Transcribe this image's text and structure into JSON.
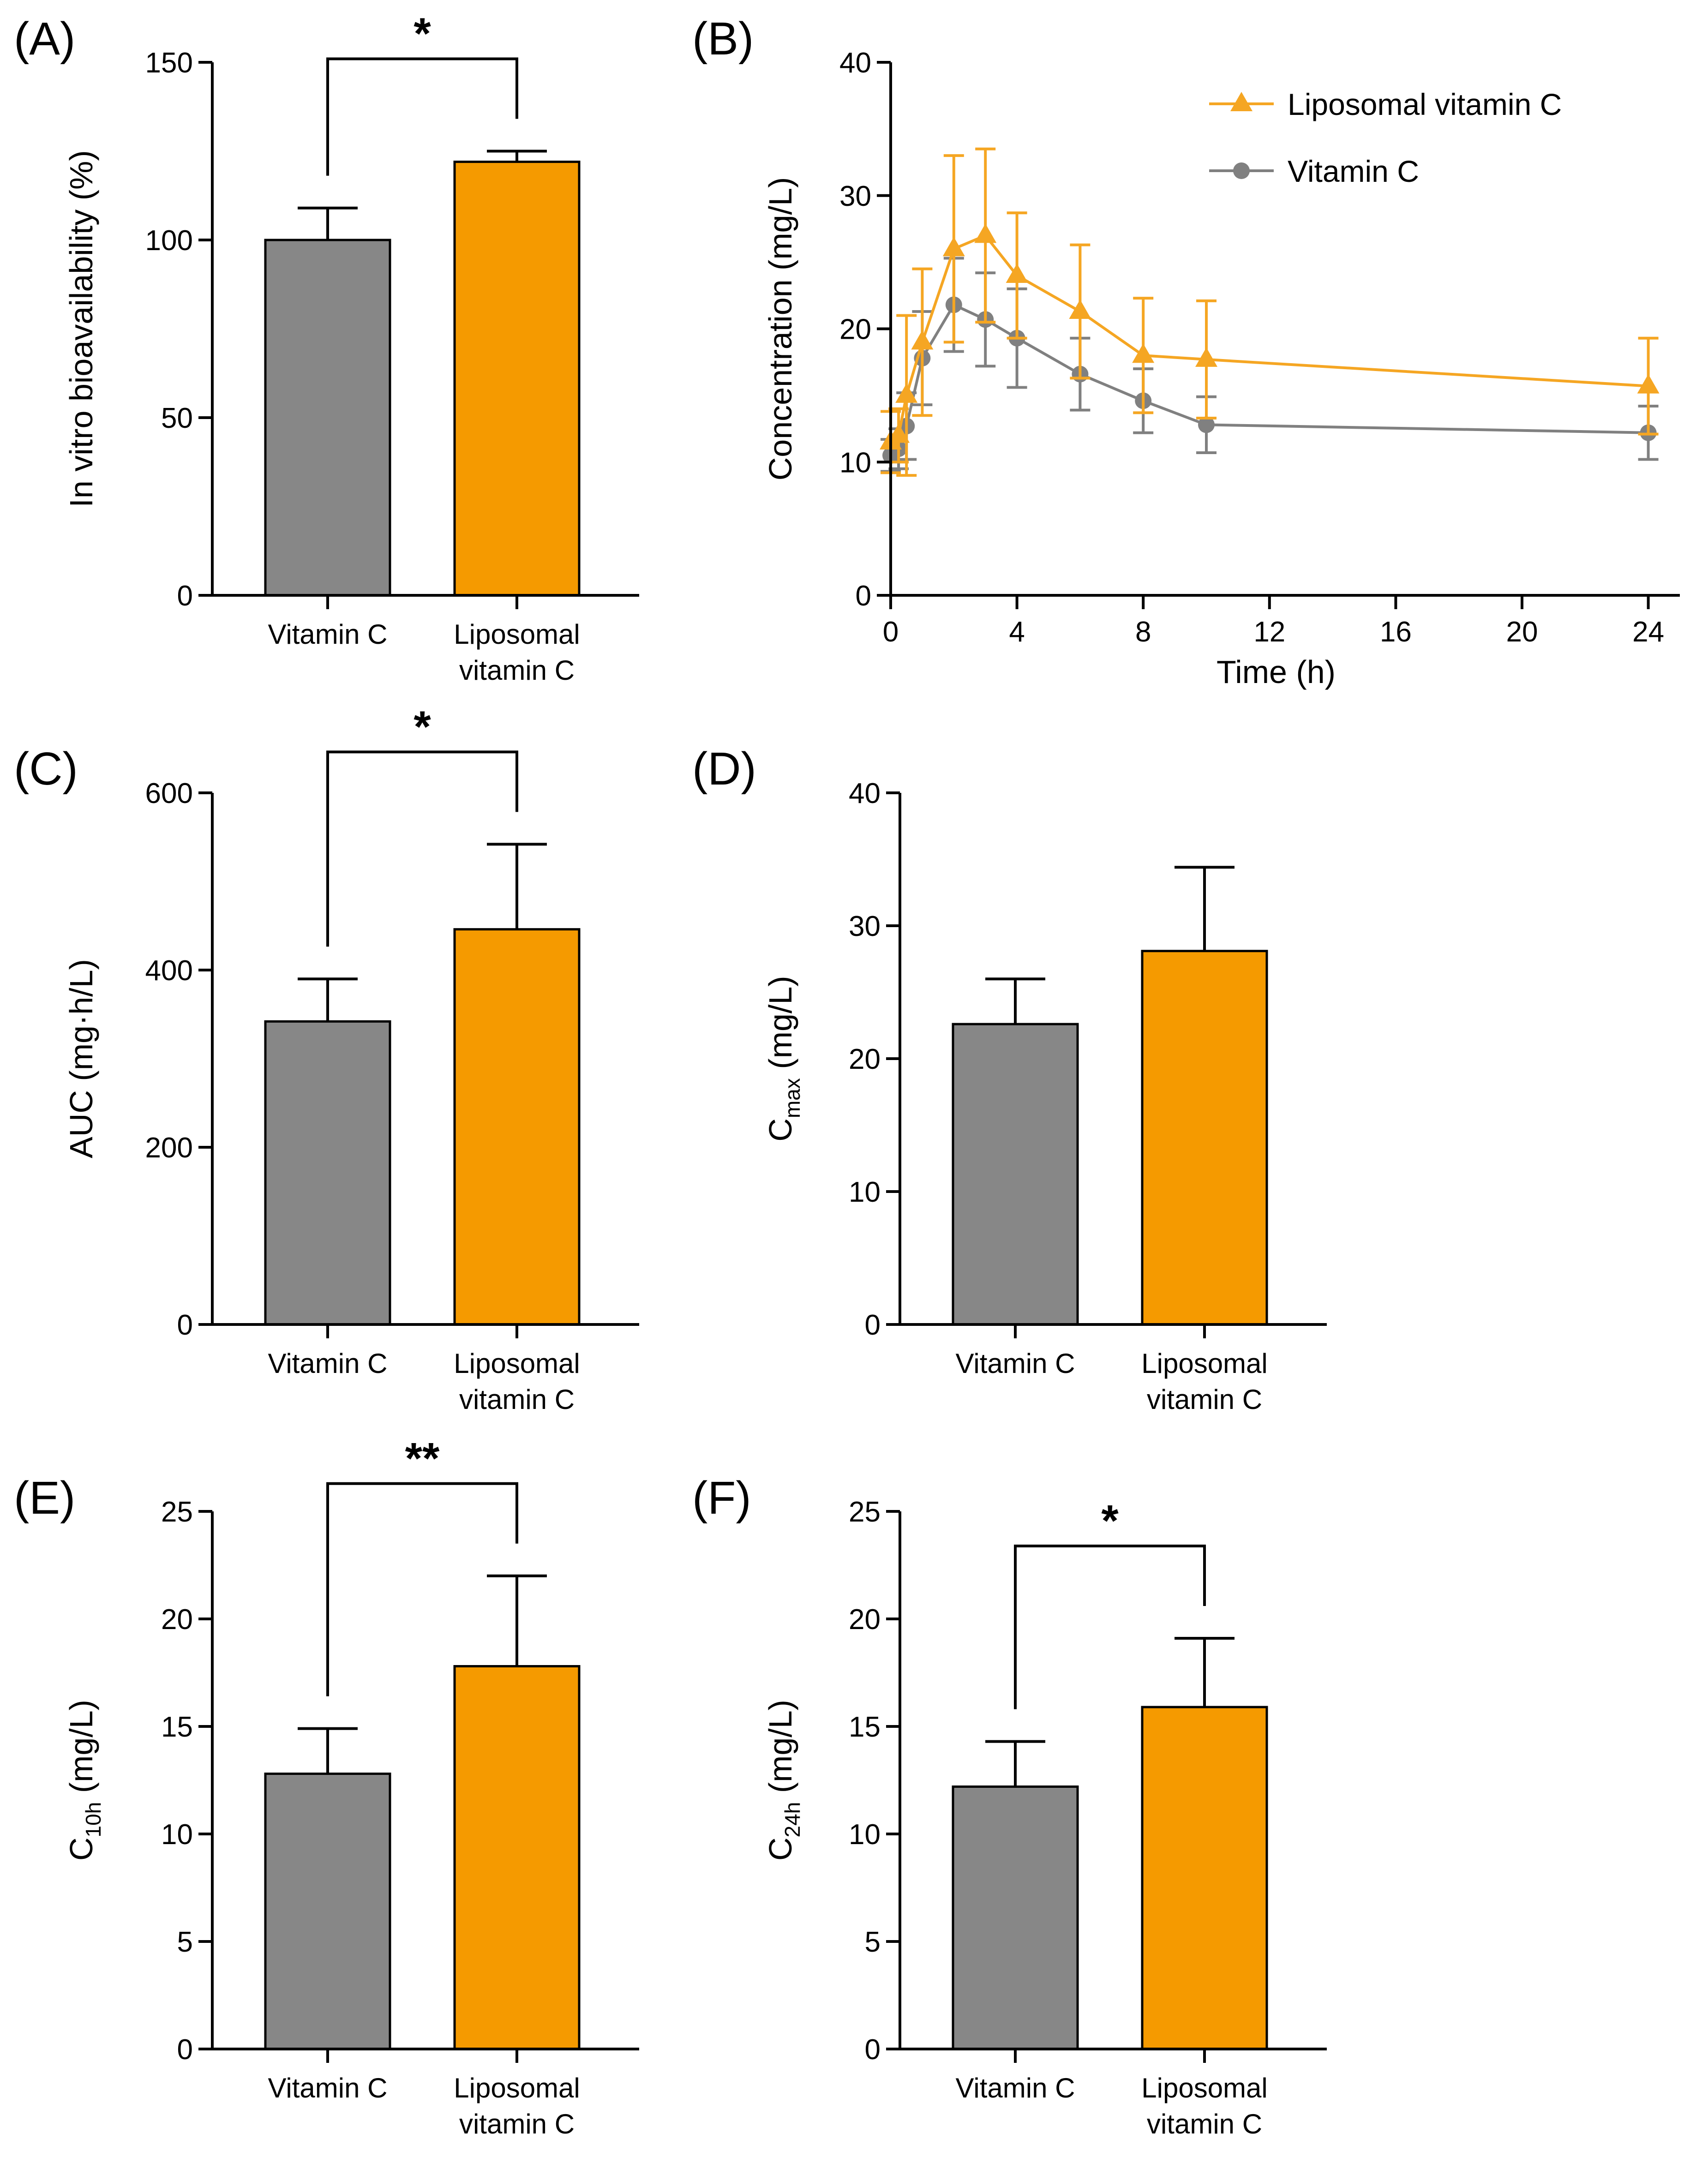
{
  "chart_data": [
    {
      "id": "A",
      "type": "bar",
      "panel_label": "(A)",
      "ylabel": "In vitro bioavailability (%)",
      "ylim": [
        0,
        150
      ],
      "yticks": [
        0,
        50,
        100,
        150
      ],
      "categories": [
        "Vitamin C",
        "Liposomal\nvitamin C"
      ],
      "values": [
        100,
        122
      ],
      "errors": [
        9,
        3
      ],
      "significance": "*"
    },
    {
      "id": "B",
      "type": "line",
      "panel_label": "(B)",
      "xlabel": "Time (h)",
      "ylabel": "Concentration (mg/L)",
      "xlim": [
        0,
        25
      ],
      "ylim": [
        0,
        40
      ],
      "xticks": [
        0,
        4,
        8,
        12,
        16,
        20,
        24
      ],
      "yticks": [
        0,
        10,
        20,
        30,
        40
      ],
      "legend_position": "top-right",
      "series": [
        {
          "name": "Liposomal vitamin C",
          "color": "#F5A623",
          "marker": "triangle",
          "x": [
            0,
            0.25,
            0.5,
            1,
            2,
            3,
            4,
            6,
            8,
            10,
            24
          ],
          "y": [
            11.5,
            12.0,
            15.0,
            19.0,
            26.0,
            27.0,
            24.0,
            21.3,
            18.0,
            17.7,
            15.7
          ],
          "err": [
            2.3,
            2.0,
            6.0,
            5.5,
            7.0,
            6.5,
            4.7,
            5.0,
            4.3,
            4.4,
            3.6
          ]
        },
        {
          "name": "Vitamin C",
          "color": "#808080",
          "marker": "circle",
          "x": [
            0,
            0.25,
            0.5,
            1,
            2,
            3,
            4,
            6,
            8,
            10,
            24
          ],
          "y": [
            10.5,
            11.0,
            12.7,
            17.8,
            21.8,
            20.7,
            19.3,
            16.6,
            14.6,
            12.8,
            12.2
          ],
          "err": [
            1.2,
            1.5,
            2.5,
            3.5,
            3.5,
            3.5,
            3.7,
            2.7,
            2.4,
            2.1,
            2.0
          ]
        }
      ]
    },
    {
      "id": "C",
      "type": "bar",
      "panel_label": "(C)",
      "ylabel": "AUC (mg·h/L)",
      "ylim": [
        0,
        600
      ],
      "yticks": [
        0,
        200,
        400,
        600
      ],
      "categories": [
        "Vitamin C",
        "Liposomal\nvitamin C"
      ],
      "values": [
        342,
        446
      ],
      "errors": [
        48,
        96
      ],
      "significance": "*"
    },
    {
      "id": "D",
      "type": "bar",
      "panel_label": "(D)",
      "ylabel": "C",
      "ylabel_sub": "max",
      "ylabel_suffix": " (mg/L)",
      "ylim": [
        0,
        40
      ],
      "yticks": [
        0,
        10,
        20,
        30,
        40
      ],
      "categories": [
        "Vitamin C",
        "Liposomal\nvitamin C"
      ],
      "values": [
        22.6,
        28.1
      ],
      "errors": [
        3.4,
        6.3
      ],
      "significance": ""
    },
    {
      "id": "E",
      "type": "bar",
      "panel_label": "(E)",
      "ylabel": "C",
      "ylabel_sub": "10h",
      "ylabel_suffix": " (mg/L)",
      "ylim": [
        0,
        25
      ],
      "yticks": [
        0,
        5,
        10,
        15,
        20,
        25
      ],
      "categories": [
        "Vitamin C",
        "Liposomal\nvitamin C"
      ],
      "values": [
        12.8,
        17.8
      ],
      "errors": [
        2.1,
        4.2
      ],
      "significance": "**"
    },
    {
      "id": "F",
      "type": "bar",
      "panel_label": "(F)",
      "ylabel": "C",
      "ylabel_sub": "24h",
      "ylabel_suffix": " (mg/L)",
      "ylim": [
        0,
        25
      ],
      "yticks": [
        0,
        5,
        10,
        15,
        20,
        25
      ],
      "categories": [
        "Vitamin C",
        "Liposomal\nvitamin C"
      ],
      "values": [
        12.2,
        15.9
      ],
      "errors": [
        2.1,
        3.2
      ],
      "significance": "*"
    }
  ],
  "colors": {
    "vitamin_c_bar": "#878787",
    "liposomal_bar": "#F59A00",
    "vitamin_c_line": "#808080",
    "liposomal_line": "#F5A623"
  }
}
